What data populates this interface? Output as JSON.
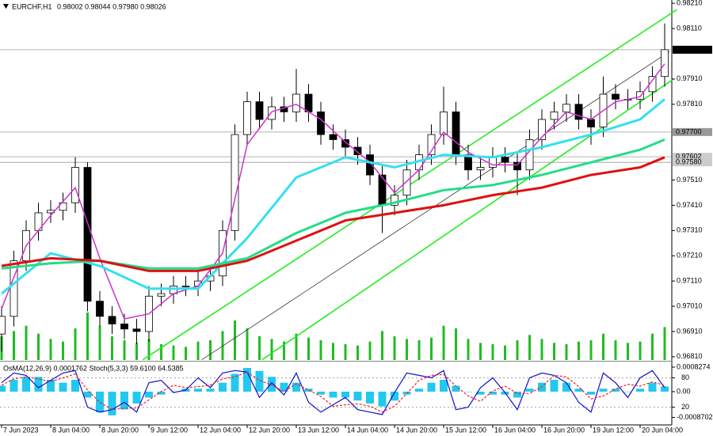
{
  "header": {
    "symbol": "EURCHF,H1",
    "quote": "0.98002 0.98044 0.97980 0.98026"
  },
  "chart_data": [
    {
      "type": "candlestick",
      "categories": [
        "7 Jun 2023",
        null,
        null,
        null,
        "8 Jun 04:00",
        null,
        null,
        null,
        "8 Jun 20:00",
        null,
        null,
        null,
        "9 Jun 12:00",
        null,
        null,
        null,
        "12 Jun 04:00",
        null,
        null,
        null,
        "12 Jun 20:00",
        null,
        null,
        null,
        "13 Jun 12:00",
        null,
        null,
        null,
        "14 Jun 04:00",
        null,
        null,
        null,
        "14 Jun 20:00",
        null,
        null,
        null,
        "15 Jun 12:00",
        null,
        null,
        null,
        "16 Jun 04:00",
        null,
        null,
        null,
        "16 Jun 20:00",
        null,
        null,
        null,
        "19 Jun 12:00",
        null,
        null,
        null,
        "20 Jun 04:00",
        null,
        null
      ],
      "open": [
        0.969,
        0.9697,
        0.9719,
        0.9731,
        0.9738,
        0.9739,
        0.9742,
        0.9756,
        0.9703,
        0.9697,
        0.9694,
        0.9692,
        0.9691,
        0.9705,
        0.9706,
        0.9709,
        0.9709,
        0.9711,
        0.9713,
        0.9731,
        0.9769,
        0.9782,
        0.9775,
        0.978,
        0.9778,
        0.9785,
        0.9778,
        0.9769,
        0.9767,
        0.9764,
        0.9761,
        0.9753,
        0.9741,
        0.9745,
        0.9755,
        0.9761,
        0.9769,
        0.9778,
        0.9761,
        0.9755,
        0.9756,
        0.976,
        0.9758,
        0.9755,
        0.9767,
        0.9775,
        0.9778,
        0.9781,
        0.9775,
        0.9772,
        0.9785,
        0.9783,
        0.9783,
        0.9786,
        0.9792
      ],
      "high": [
        0.9701,
        0.9723,
        0.9735,
        0.9742,
        0.9743,
        0.9746,
        0.976,
        0.9758,
        0.9707,
        0.9701,
        0.9698,
        0.9696,
        0.9709,
        0.971,
        0.9713,
        0.9713,
        0.9715,
        0.9717,
        0.9735,
        0.9773,
        0.9786,
        0.9786,
        0.9784,
        0.9784,
        0.9795,
        0.9789,
        0.9782,
        0.9773,
        0.9771,
        0.9768,
        0.9765,
        0.9757,
        0.9749,
        0.9759,
        0.9765,
        0.9773,
        0.9788,
        0.9782,
        0.9765,
        0.976,
        0.9764,
        0.9764,
        0.9762,
        0.9771,
        0.9779,
        0.9782,
        0.9785,
        0.9785,
        0.9779,
        0.9792,
        0.9789,
        0.9787,
        0.979,
        0.9796,
        0.9813
      ],
      "low": [
        0.9683,
        0.9693,
        0.9715,
        0.9727,
        0.9734,
        0.9735,
        0.9738,
        0.9699,
        0.9693,
        0.969,
        0.9688,
        0.9686,
        0.9687,
        0.9701,
        0.9702,
        0.9705,
        0.9705,
        0.9707,
        0.9709,
        0.9727,
        0.9765,
        0.9771,
        0.9771,
        0.9774,
        0.9774,
        0.9774,
        0.9765,
        0.9763,
        0.976,
        0.9757,
        0.9749,
        0.973,
        0.9737,
        0.9741,
        0.9751,
        0.9757,
        0.9765,
        0.9757,
        0.9751,
        0.9751,
        0.9752,
        0.9754,
        0.9745,
        0.9751,
        0.9763,
        0.9771,
        0.9774,
        0.9771,
        0.9765,
        0.9768,
        0.9779,
        0.9779,
        0.9779,
        0.9782,
        0.9788
      ],
      "close": [
        0.9697,
        0.9719,
        0.9731,
        0.9738,
        0.9739,
        0.9742,
        0.9756,
        0.9703,
        0.9697,
        0.9694,
        0.9692,
        0.9691,
        0.9705,
        0.9706,
        0.9709,
        0.9709,
        0.9711,
        0.9713,
        0.9731,
        0.9769,
        0.9782,
        0.9775,
        0.978,
        0.9778,
        0.9785,
        0.9778,
        0.9769,
        0.9767,
        0.9764,
        0.9761,
        0.9753,
        0.9741,
        0.9745,
        0.9755,
        0.9761,
        0.9769,
        0.9778,
        0.9761,
        0.9755,
        0.9756,
        0.976,
        0.9758,
        0.9755,
        0.9767,
        0.9775,
        0.9778,
        0.9781,
        0.9775,
        0.9772,
        0.9785,
        0.9783,
        0.9783,
        0.9786,
        0.9792,
        0.98026
      ],
      "series": [
        {
          "color": "#cc33cc",
          "x": [
            0,
            2,
            4,
            6,
            8,
            10,
            12,
            14,
            16,
            18,
            20,
            22,
            24,
            26,
            28,
            30,
            32,
            34,
            36,
            38,
            40,
            42,
            44,
            46,
            48,
            50,
            52,
            54
          ],
          "values": [
            0.97,
            0.9725,
            0.9737,
            0.9748,
            0.972,
            0.9696,
            0.9698,
            0.9706,
            0.9709,
            0.9722,
            0.9765,
            0.9778,
            0.9781,
            0.9775,
            0.9766,
            0.9758,
            0.9746,
            0.9755,
            0.977,
            0.9762,
            0.9757,
            0.9757,
            0.9768,
            0.9778,
            0.9775,
            0.9782,
            0.9784,
            0.9797
          ]
        },
        {
          "color": "#33e0f0",
          "x": [
            0,
            4,
            8,
            12,
            16,
            20,
            24,
            28,
            32,
            36,
            40,
            44,
            48,
            52,
            54
          ],
          "values": [
            0.9706,
            0.9722,
            0.9717,
            0.9708,
            0.9708,
            0.9728,
            0.9752,
            0.976,
            0.9756,
            0.9761,
            0.976,
            0.9764,
            0.9769,
            0.9775,
            0.9783
          ]
        },
        {
          "color": "#22dd88",
          "x": [
            0,
            4,
            8,
            12,
            16,
            20,
            24,
            28,
            32,
            36,
            40,
            44,
            48,
            52,
            54
          ],
          "values": [
            0.9716,
            0.9718,
            0.9719,
            0.9716,
            0.9716,
            0.972,
            0.973,
            0.9738,
            0.9742,
            0.9747,
            0.9749,
            0.9753,
            0.9758,
            0.9763,
            0.9767
          ]
        },
        {
          "color": "#dd1111",
          "x": [
            0,
            4,
            8,
            12,
            16,
            20,
            24,
            28,
            32,
            36,
            40,
            44,
            48,
            52,
            54
          ],
          "values": [
            0.9717,
            0.972,
            0.9719,
            0.9715,
            0.9715,
            0.9719,
            0.9727,
            0.9735,
            0.9738,
            0.9741,
            0.9745,
            0.9748,
            0.9753,
            0.9756,
            0.976
          ]
        }
      ],
      "volume": {
        "color": "#22bb22",
        "values": [
          1800,
          2200,
          2600,
          2000,
          1600,
          1400,
          2400,
          3600,
          2600,
          1800,
          1500,
          1300,
          1600,
          1200,
          1100,
          1000,
          1400,
          1500,
          2200,
          3000,
          2400,
          1800,
          1600,
          1400,
          2000,
          1700,
          1500,
          1300,
          1200,
          1100,
          1400,
          2200,
          1800,
          1600,
          1500,
          1700,
          2600,
          2400,
          1600,
          1300,
          1200,
          1100,
          1500,
          1900,
          1600,
          1300,
          1200,
          1400,
          1500,
          2000,
          1500,
          1300,
          1400,
          2000,
          2500
        ]
      },
      "channels": [
        {
          "color": "#22ee22",
          "x": [
            11.5,
            55
          ],
          "values": [
            0.96798,
            0.98185
          ]
        },
        {
          "color": "#333333",
          "x": [
            16.3,
            54.4
          ],
          "values": [
            0.96798,
            0.98019
          ]
        },
        {
          "color": "#22ee22",
          "x": [
            21.2,
            54.7
          ],
          "values": [
            0.96798,
            0.97909
          ]
        }
      ],
      "levels": [
        0.98026,
        {
          "value": 0.977,
          "label": "0.97700"
        },
        0.97602,
        {
          "value": 0.9758,
          "label": "0.97580"
        }
      ],
      "ylim": [
        0.96797,
        0.98223
      ],
      "yticks": [
        {
          "value": 0.9821,
          "label": "0.98210"
        },
        {
          "value": 0.9811,
          "label": "0.98110"
        },
        {
          "value": 0.9791,
          "label": "0.97910"
        },
        {
          "value": 0.9781,
          "label": "0.97810"
        },
        {
          "value": 0.9751,
          "label": "0.97510"
        },
        {
          "value": 0.9741,
          "label": "0.97410"
        },
        {
          "value": 0.9731,
          "label": "0.97310"
        },
        {
          "value": 0.9721,
          "label": "0.97210"
        },
        {
          "value": 0.9711,
          "label": "0.97110"
        },
        {
          "value": 0.9701,
          "label": "0.97010"
        },
        {
          "value": 0.9691,
          "label": "0.96910"
        },
        {
          "value": 0.9681,
          "label": "0.96810"
        }
      ]
    },
    {
      "type": "oscillator",
      "label": "OsMA(12,26,9) 0.0001762  Stoch(5,3,3) 59.6100 64.5385",
      "series": [
        {
          "type": "bar",
          "color": "#22c8ee",
          "values": [
            0.0002,
            0.0004,
            0.0005,
            0.0005,
            0.0004,
            0.0003,
            0.0004,
            -0.0002,
            -0.0007,
            -0.0008,
            -0.0006,
            -0.0004,
            -0.0002,
            -0.0001,
            0.0,
            0.0001,
            0.0001,
            0.0001,
            0.0003,
            0.0006,
            0.0008,
            0.0007,
            0.0005,
            0.0003,
            0.0003,
            0.0001,
            -0.0001,
            -0.0002,
            -0.0002,
            -0.0003,
            -0.0004,
            -0.0005,
            -0.0003,
            -0.0001,
            0.0001,
            0.0003,
            0.0004,
            0.0002,
            0.0,
            -0.0001,
            -0.0001,
            -0.0001,
            -0.0002,
            0.0001,
            0.0003,
            0.0004,
            0.0003,
            0.0001,
            -0.0001,
            0.0001,
            0.0001,
            0.0,
            0.0001,
            0.0003,
            0.0001762
          ]
        },
        {
          "type": "line",
          "axis": "y2",
          "color": "#1111cc",
          "values": [
            70,
            90,
            85,
            60,
            75,
            90,
            95,
            20,
            10,
            15,
            30,
            10,
            70,
            75,
            50,
            55,
            80,
            60,
            90,
            95,
            92,
            40,
            70,
            45,
            90,
            30,
            10,
            25,
            40,
            15,
            10,
            5,
            50,
            90,
            85,
            80,
            95,
            15,
            20,
            60,
            80,
            50,
            15,
            80,
            90,
            85,
            70,
            30,
            10,
            90,
            70,
            40,
            80,
            95,
            59.61
          ]
        },
        {
          "type": "line",
          "axis": "y2",
          "dashed": true,
          "color": "#ee2222",
          "values": [
            65,
            78,
            82,
            78,
            72,
            80,
            88,
            55,
            30,
            15,
            18,
            18,
            35,
            52,
            65,
            60,
            62,
            65,
            78,
            82,
            92,
            75,
            65,
            52,
            68,
            55,
            42,
            22,
            25,
            27,
            22,
            10,
            22,
            48,
            75,
            85,
            87,
            63,
            43,
            32,
            53,
            63,
            48,
            48,
            62,
            85,
            82,
            62,
            37,
            43,
            57,
            67,
            63,
            72,
            64.5385
          ]
        }
      ],
      "ylim": [
        -0.00107,
        0.00096
      ],
      "yticks": [
        0.0008274,
        {
          "value": 0,
          "label": "0.00"
        },
        -0.0008702
      ],
      "y2lim": [
        -13,
        110
      ],
      "y2ticks": [
        80,
        20
      ],
      "grid": true
    }
  ]
}
